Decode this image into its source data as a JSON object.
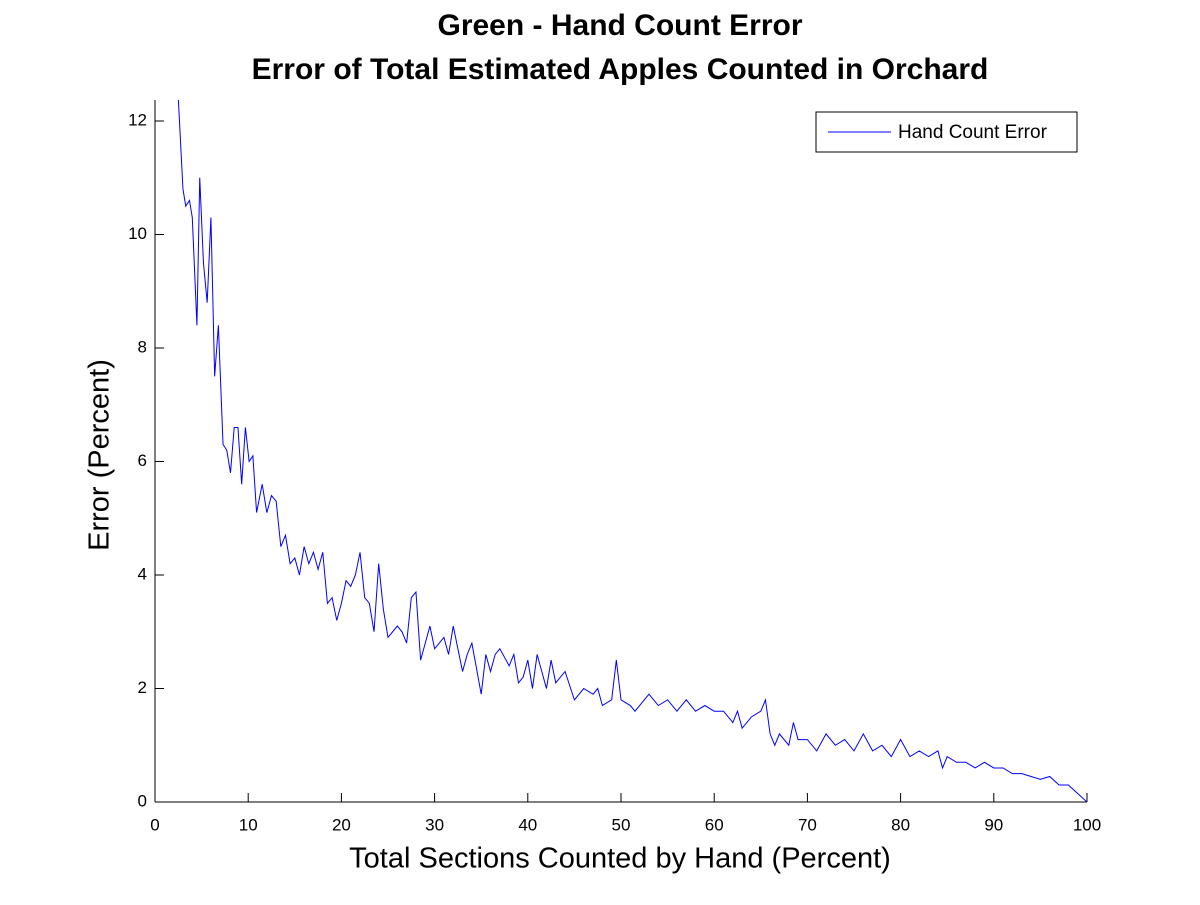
{
  "chart_data": {
    "type": "line",
    "title": [
      "Green - Hand Count Error",
      "Error of Total Estimated Apples Counted in Orchard"
    ],
    "x_label": "Total Sections Counted by Hand (Percent)",
    "y_label": "Error (Percent)",
    "xlim": [
      0,
      100
    ],
    "ylim": [
      0,
      12.37
    ],
    "xticks": [
      0,
      10,
      20,
      30,
      40,
      50,
      60,
      70,
      80,
      90,
      100
    ],
    "yticks": [
      0,
      2,
      4,
      6,
      8,
      10,
      12
    ],
    "legend": "northeast",
    "x": [
      2.2,
      2.5,
      3,
      3.3,
      3.7,
      4,
      4.5,
      4.8,
      5.2,
      5.6,
      6,
      6.4,
      6.8,
      7.3,
      7.7,
      8.1,
      8.5,
      8.9,
      9.3,
      9.7,
      10.1,
      10.5,
      10.9,
      11.5,
      12,
      12.5,
      13,
      13.5,
      14,
      14.5,
      15,
      15.5,
      16,
      16.5,
      17,
      17.5,
      18,
      18.5,
      19,
      19.5,
      20,
      20.5,
      21,
      21.5,
      22,
      22.5,
      23,
      23.5,
      24,
      24.5,
      25,
      25.5,
      26,
      26.5,
      27,
      27.5,
      28,
      28.5,
      29,
      29.5,
      30,
      31,
      31.5,
      32,
      33,
      33.5,
      34,
      35,
      35.5,
      36,
      36.5,
      37,
      38,
      38.5,
      39,
      39.5,
      40,
      40.5,
      41,
      42,
      42.5,
      43,
      44,
      45,
      46,
      47,
      47.5,
      48,
      49,
      49.5,
      50,
      51,
      51.5,
      52,
      53,
      54,
      55,
      56,
      57,
      58,
      59,
      60,
      61,
      62,
      62.5,
      63,
      64,
      65,
      65.5,
      66,
      66.5,
      67,
      68,
      68.5,
      69,
      70,
      71,
      72,
      73,
      74,
      75,
      76,
      77,
      78,
      79,
      80,
      81,
      82,
      83,
      84,
      84.5,
      85,
      86,
      87,
      88,
      89,
      90,
      91,
      92,
      93,
      94,
      95,
      96,
      97,
      98,
      99,
      100
    ],
    "series": [
      {
        "name": "Hand Count Error",
        "color": "#0000ff",
        "values": [
          13,
          12.4,
          10.8,
          10.5,
          10.6,
          10.3,
          8.4,
          11,
          9.5,
          8.8,
          10.3,
          7.5,
          8.4,
          6.3,
          6.2,
          5.8,
          6.6,
          6.6,
          5.6,
          6.6,
          6.0,
          6.1,
          5.1,
          5.6,
          5.1,
          5.4,
          5.3,
          4.5,
          4.7,
          4.2,
          4.3,
          4.0,
          4.5,
          4.2,
          4.4,
          4.1,
          4.4,
          3.5,
          3.6,
          3.2,
          3.5,
          3.9,
          3.8,
          4.0,
          4.4,
          3.6,
          3.5,
          3.0,
          4.2,
          3.4,
          2.9,
          3.0,
          3.1,
          3.0,
          2.8,
          3.6,
          3.7,
          2.5,
          2.8,
          3.1,
          2.7,
          2.9,
          2.6,
          3.1,
          2.3,
          2.6,
          2.8,
          1.9,
          2.6,
          2.3,
          2.6,
          2.7,
          2.4,
          2.6,
          2.1,
          2.2,
          2.5,
          2.0,
          2.6,
          2.0,
          2.5,
          2.1,
          2.3,
          1.8,
          2.0,
          1.9,
          2.0,
          1.7,
          1.8,
          2.5,
          1.8,
          1.7,
          1.6,
          1.7,
          1.9,
          1.7,
          1.8,
          1.6,
          1.8,
          1.6,
          1.7,
          1.6,
          1.6,
          1.4,
          1.6,
          1.3,
          1.5,
          1.6,
          1.8,
          1.2,
          1.0,
          1.2,
          1.0,
          1.4,
          1.1,
          1.1,
          0.9,
          1.2,
          1.0,
          1.1,
          0.9,
          1.2,
          0.9,
          1.0,
          0.8,
          1.1,
          0.8,
          0.9,
          0.8,
          0.9,
          0.6,
          0.8,
          0.7,
          0.7,
          0.6,
          0.7,
          0.6,
          0.6,
          0.5,
          0.5,
          0.45,
          0.4,
          0.45,
          0.3,
          0.3,
          0.15,
          0
        ]
      }
    ]
  }
}
